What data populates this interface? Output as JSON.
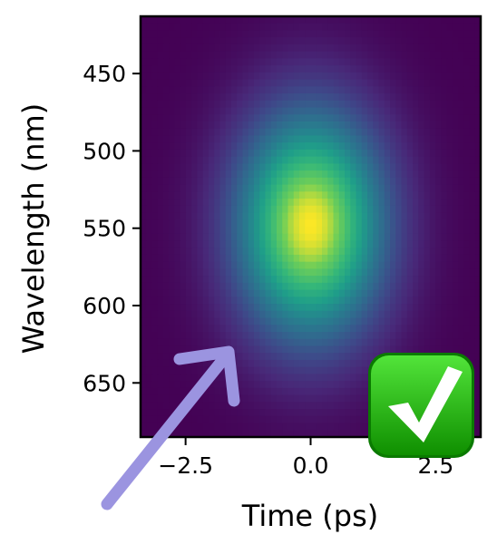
{
  "chart_data": {
    "type": "heatmap",
    "title": "",
    "xlabel": "Time (ps)",
    "ylabel": "Wavelength (nm)",
    "xlim": [
      -3.4,
      3.4
    ],
    "ylim": [
      685,
      413
    ],
    "y_inverted": true,
    "xticks": [
      -2.5,
      0.0,
      2.5
    ],
    "xtick_labels": [
      "−2.5",
      "0.0",
      "2.5"
    ],
    "yticks": [
      450,
      500,
      550,
      600,
      650
    ],
    "ytick_labels": [
      "450",
      "500",
      "550",
      "600",
      "650"
    ],
    "colormap": "viridis",
    "grid": false,
    "legend": "none",
    "surface": {
      "shape": "gaussian",
      "center_time_ps": 0.0,
      "center_wavelength_nm": 548,
      "sigma_time_ps": 1.05,
      "sigma_wavelength_nm": 52,
      "peak_value": 1.0
    }
  },
  "annotations": {
    "arrow": {
      "color": "#9b94e0",
      "icon": "arrow-up-right-icon"
    },
    "checkmark": {
      "color": "#16a400",
      "icon": "check-mark-button-icon"
    }
  }
}
